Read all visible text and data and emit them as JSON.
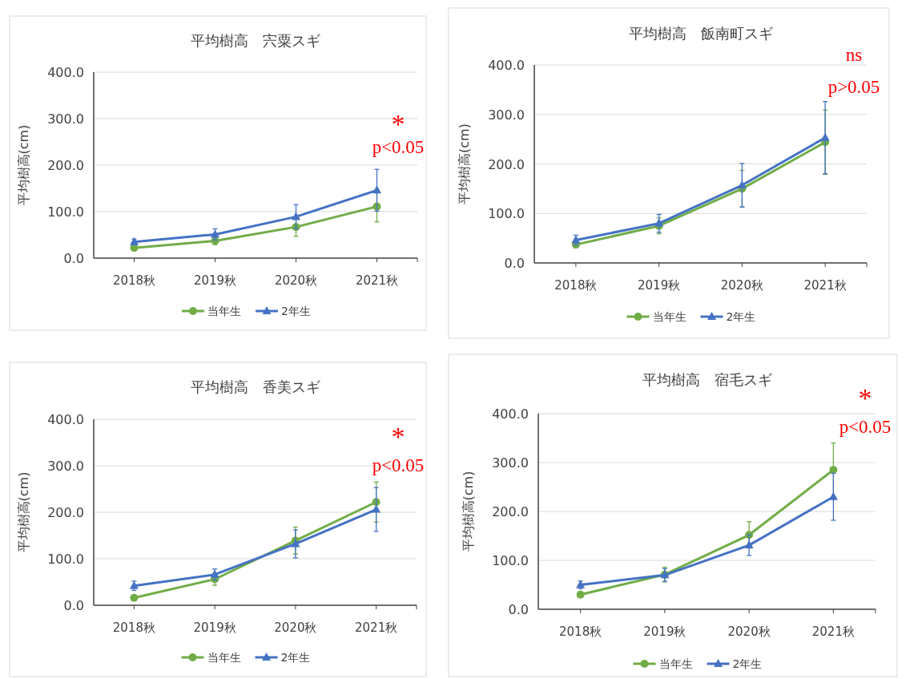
{
  "chart_data": [
    {
      "type": "line",
      "title": "平均樹高　宍粟スギ",
      "ylabel": "平均樹高(cm)",
      "categories": [
        "2018秋",
        "2019秋",
        "2020秋",
        "2021秋"
      ],
      "series": [
        {
          "name": "当年生",
          "color": "#70ad47",
          "marker": "circle",
          "values": [
            22,
            37,
            67,
            111
          ],
          "errors": [
            5,
            8,
            20,
            33
          ]
        },
        {
          "name": "2年生",
          "color": "#4472c4",
          "marker": "triangle",
          "values": [
            35,
            51,
            89,
            146
          ],
          "errors": [
            6,
            12,
            26,
            45
          ]
        }
      ],
      "ylim": [
        0,
        400
      ],
      "yticks": [
        {
          "value": 0,
          "label": "0.0"
        },
        {
          "value": 100,
          "label": "100.0"
        },
        {
          "value": 200,
          "label": "200.0"
        },
        {
          "value": 300,
          "label": "300.0"
        },
        {
          "value": 400,
          "label": "400.0"
        }
      ],
      "grid": "y",
      "legend": "bottom",
      "annotations": [
        "*",
        "p<0.05"
      ]
    },
    {
      "type": "line",
      "title": "平均樹高　飯南町スギ",
      "ylabel": "平均樹高(cm)",
      "categories": [
        "2018秋",
        "2019秋",
        "2020秋",
        "2021秋"
      ],
      "series": [
        {
          "name": "当年生",
          "color": "#70ad47",
          "marker": "circle",
          "values": [
            37,
            75,
            150,
            244
          ],
          "errors": [
            6,
            16,
            37,
            65
          ]
        },
        {
          "name": "2年生",
          "color": "#4472c4",
          "marker": "triangle",
          "values": [
            46,
            80,
            157,
            253
          ],
          "errors": [
            10,
            18,
            44,
            73
          ]
        }
      ],
      "ylim": [
        0,
        400
      ],
      "yticks": [
        {
          "value": 0,
          "label": "0.0"
        },
        {
          "value": 100,
          "label": "100.0"
        },
        {
          "value": 200,
          "label": "200.0"
        },
        {
          "value": 300,
          "label": "300.0"
        },
        {
          "value": 400,
          "label": "400.0"
        }
      ],
      "grid": "y",
      "legend": "bottom",
      "annotations": [
        "ns",
        "p>0.05"
      ]
    },
    {
      "type": "line",
      "title": "平均樹高　香美スギ",
      "ylabel": "平均樹高(cm)",
      "categories": [
        "2018秋",
        "2019秋",
        "2020秋",
        "2021秋"
      ],
      "series": [
        {
          "name": "当年生",
          "color": "#70ad47",
          "marker": "circle",
          "values": [
            16,
            56,
            139,
            222
          ],
          "errors": [
            4,
            13,
            29,
            43
          ]
        },
        {
          "name": "2年生",
          "color": "#4472c4",
          "marker": "triangle",
          "values": [
            42,
            66,
            132,
            206
          ],
          "errors": [
            10,
            12,
            30,
            47
          ]
        }
      ],
      "ylim": [
        0,
        400
      ],
      "yticks": [
        {
          "value": 0,
          "label": "0.0"
        },
        {
          "value": 100,
          "label": "100.0"
        },
        {
          "value": 200,
          "label": "200.0"
        },
        {
          "value": 300,
          "label": "300.0"
        },
        {
          "value": 400,
          "label": "400.0"
        }
      ],
      "grid": "y",
      "legend": "bottom",
      "annotations": [
        "*",
        "p<0.05"
      ]
    },
    {
      "type": "line",
      "title": "平均樹高　宿毛スギ",
      "ylabel": "平均樹高(cm)",
      "categories": [
        "2018秋",
        "2019秋",
        "2020秋",
        "2021秋"
      ],
      "series": [
        {
          "name": "当年生",
          "color": "#70ad47",
          "marker": "circle",
          "values": [
            30,
            71,
            152,
            285
          ],
          "errors": [
            4,
            15,
            27,
            55
          ]
        },
        {
          "name": "2年生",
          "color": "#4472c4",
          "marker": "triangle",
          "values": [
            50,
            70,
            131,
            230
          ],
          "errors": [
            8,
            13,
            21,
            48
          ]
        }
      ],
      "ylim": [
        0,
        400
      ],
      "yticks": [
        {
          "value": 0,
          "label": "0.0"
        },
        {
          "value": 100,
          "label": "100.0"
        },
        {
          "value": 200,
          "label": "200.0"
        },
        {
          "value": 300,
          "label": "300.0"
        },
        {
          "value": 400,
          "label": "400.0"
        }
      ],
      "grid": "y",
      "legend": "bottom",
      "annotations": [
        "*",
        "p<0.05"
      ]
    }
  ]
}
